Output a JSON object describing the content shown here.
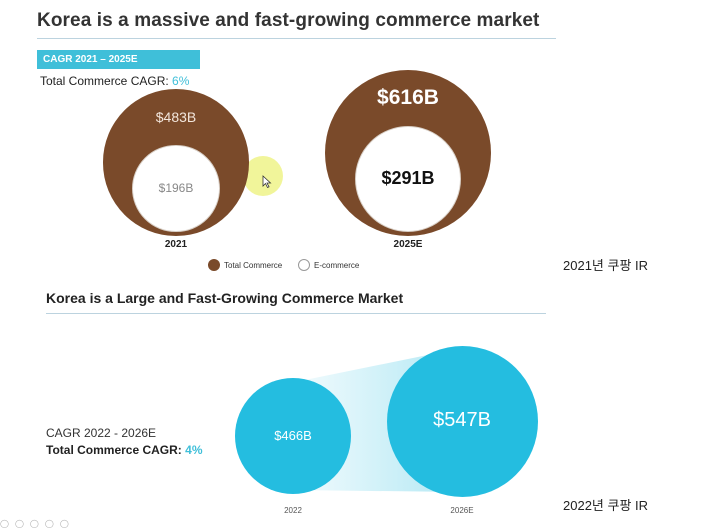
{
  "slide1": {
    "title": "Korea is a massive and fast-growing commerce market",
    "badge": "CAGR 2021 – 2025E",
    "cagr_label": "Total Commerce CAGR: ",
    "cagr_value": "6%",
    "legend": {
      "total": "Total Commerce",
      "ecommerce": "E-commerce"
    },
    "colors": {
      "total": "#7a4a2a",
      "accent": "#3fbfd9"
    },
    "source": "2021년 쿠팡 IR"
  },
  "slide2": {
    "title": "Korea is a Large and Fast-Growing Commerce Market",
    "cagr_label_1": "CAGR 2022 - 2026E",
    "cagr_label_2": "Total Commerce CAGR: ",
    "cagr_value": "4%",
    "colors": {
      "circle": "#24bde0"
    },
    "source": "2022년 쿠팡 IR"
  },
  "chart_data": [
    {
      "type": "bubble",
      "title": "Korea is a massive and fast-growing commerce market",
      "categories": [
        "2021",
        "2025E"
      ],
      "series": [
        {
          "name": "Total Commerce",
          "values": [
            483,
            616
          ],
          "labels": [
            "$483B",
            "$616B"
          ]
        },
        {
          "name": "E-commerce",
          "values": [
            196,
            291
          ],
          "labels": [
            "$196B",
            "$291B"
          ]
        }
      ],
      "units": "USD billions"
    },
    {
      "type": "bubble",
      "title": "Korea is a Large and Fast-Growing Commerce Market",
      "categories": [
        "2022",
        "2026E"
      ],
      "series": [
        {
          "values": [
            466,
            547
          ],
          "labels": [
            "$466B",
            "$547B"
          ]
        }
      ],
      "units": "USD billions"
    }
  ]
}
